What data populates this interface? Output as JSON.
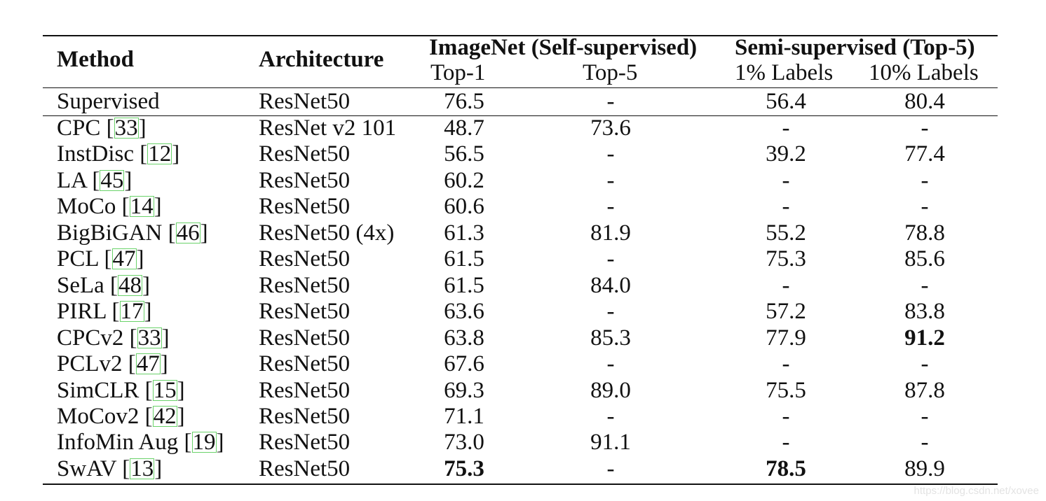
{
  "header": {
    "method": "Method",
    "architecture": "Architecture",
    "imagenet_group": "ImageNet (Self-supervised)",
    "semi_group": "Semi-supervised (Top-5)",
    "top1": "Top-1",
    "top5": "Top-5",
    "labels1": "1% Labels",
    "labels10": "10% Labels"
  },
  "rows": [
    {
      "method": "Supervised",
      "ref": "",
      "arch": "ResNet50",
      "top1": "76.5",
      "top5": "-",
      "l1": "56.4",
      "l10": "80.4"
    },
    {
      "method": "CPC [",
      "ref": "33",
      "arch": "ResNet v2 101",
      "top1": "48.7",
      "top5": "73.6",
      "l1": "-",
      "l10": "-"
    },
    {
      "method": "InstDisc [",
      "ref": "12",
      "arch": "ResNet50",
      "top1": "56.5",
      "top5": "-",
      "l1": "39.2",
      "l10": "77.4"
    },
    {
      "method": "LA [",
      "ref": "45",
      "arch": "ResNet50",
      "top1": "60.2",
      "top5": "-",
      "l1": "-",
      "l10": "-"
    },
    {
      "method": "MoCo [",
      "ref": "14",
      "arch": "ResNet50",
      "top1": "60.6",
      "top5": "-",
      "l1": "-",
      "l10": "-"
    },
    {
      "method": "BigBiGAN [",
      "ref": "46",
      "arch": "ResNet50 (4x)",
      "top1": "61.3",
      "top5": "81.9",
      "l1": "55.2",
      "l10": "78.8"
    },
    {
      "method": "PCL [",
      "ref": "47",
      "arch": "ResNet50",
      "top1": "61.5",
      "top5": "-",
      "l1": "75.3",
      "l10": "85.6"
    },
    {
      "method": "SeLa [",
      "ref": "48",
      "arch": "ResNet50",
      "top1": "61.5",
      "top5": "84.0",
      "l1": "-",
      "l10": "-"
    },
    {
      "method": "PIRL [",
      "ref": "17",
      "arch": "ResNet50",
      "top1": "63.6",
      "top5": "-",
      "l1": "57.2",
      "l10": "83.8"
    },
    {
      "method": "CPCv2 [",
      "ref": "33",
      "arch": "ResNet50",
      "top1": "63.8",
      "top5": "85.3",
      "l1": "77.9",
      "l10": "91.2"
    },
    {
      "method": "PCLv2 [",
      "ref": "47",
      "arch": "ResNet50",
      "top1": "67.6",
      "top5": "-",
      "l1": "-",
      "l10": "-"
    },
    {
      "method": "SimCLR [",
      "ref": "15",
      "arch": "ResNet50",
      "top1": "69.3",
      "top5": "89.0",
      "l1": "75.5",
      "l10": "87.8"
    },
    {
      "method": "MoCov2 [",
      "ref": "42",
      "arch": "ResNet50",
      "top1": "71.1",
      "top5": "-",
      "l1": "-",
      "l10": "-"
    },
    {
      "method": "InfoMin Aug [",
      "ref": "19",
      "arch": "ResNet50",
      "top1": "73.0",
      "top5": "91.1",
      "l1": "-",
      "l10": "-"
    },
    {
      "method": "SwAV [",
      "ref": "13",
      "arch": "ResNet50",
      "top1": "75.3",
      "top5": "-",
      "l1": "78.5",
      "l10": "89.9"
    }
  ],
  "close_bracket": "]",
  "watermark": "https://blog.csdn.net/xovee"
}
